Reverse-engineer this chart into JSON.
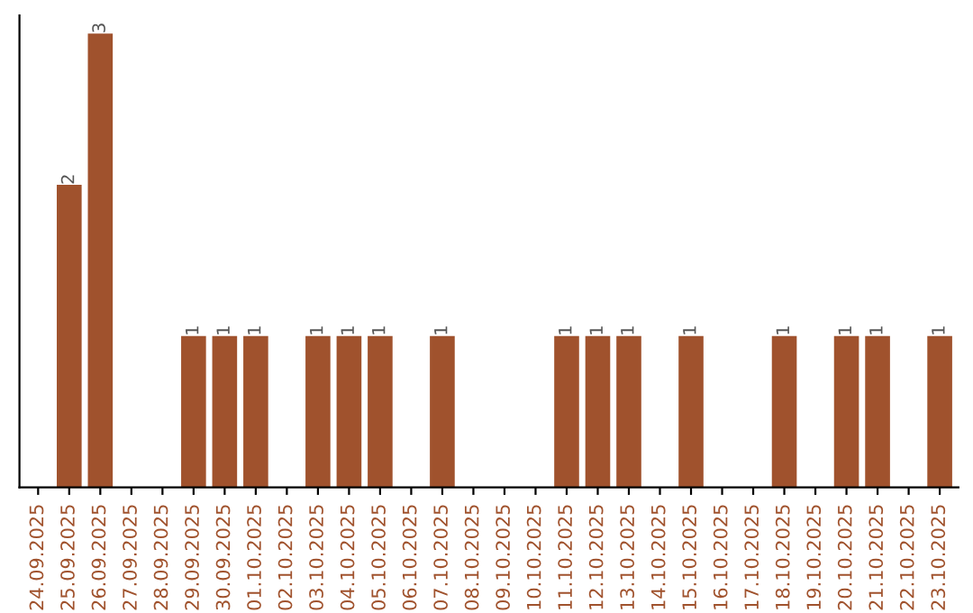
{
  "chart_data": {
    "type": "bar",
    "categories": [
      "24.09.2025",
      "25.09.2025",
      "26.09.2025",
      "27.09.2025",
      "28.09.2025",
      "29.09.2025",
      "30.09.2025",
      "01.10.2025",
      "02.10.2025",
      "03.10.2025",
      "04.10.2025",
      "05.10.2025",
      "06.10.2025",
      "07.10.2025",
      "08.10.2025",
      "09.10.2025",
      "10.10.2025",
      "11.10.2025",
      "12.10.2025",
      "13.10.2025",
      "14.10.2025",
      "15.10.2025",
      "16.10.2025",
      "17.10.2025",
      "18.10.2025",
      "19.10.2025",
      "20.10.2025",
      "21.10.2025",
      "22.10.2025",
      "23.10.2025"
    ],
    "values": [
      0,
      2,
      3,
      0,
      0,
      1,
      1,
      1,
      0,
      1,
      1,
      1,
      0,
      1,
      0,
      0,
      0,
      1,
      1,
      1,
      0,
      1,
      0,
      0,
      1,
      0,
      1,
      1,
      0,
      1
    ],
    "value_labels": [
      null,
      "2",
      "3",
      null,
      null,
      "1",
      "1",
      "1",
      null,
      "1",
      "1",
      "1",
      null,
      "1",
      null,
      null,
      null,
      "1",
      "1",
      "1",
      null,
      "1",
      null,
      null,
      "1",
      null,
      "1",
      "1",
      null,
      "1"
    ],
    "color": "#a0522d",
    "tick_labels": "x"
  }
}
